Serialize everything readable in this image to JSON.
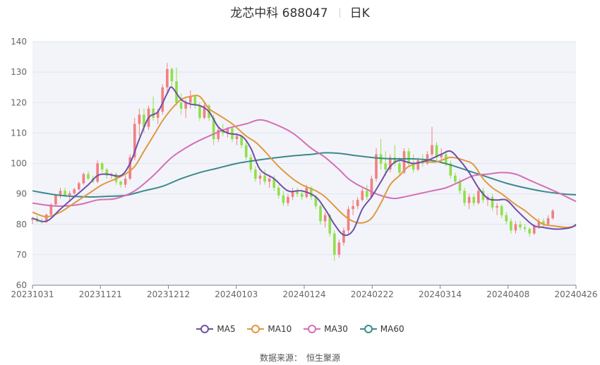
{
  "header": {
    "title": "龙芯中科 688047",
    "period": "日K"
  },
  "footer": {
    "source_label": "数据来源：",
    "source_name": "恒生聚源"
  },
  "colors": {
    "up": "#f08080",
    "down": "#8fe04a",
    "ma5": "#6f4fa6",
    "ma10": "#e0993f",
    "ma30": "#d46fb4",
    "ma60": "#3b8a8a",
    "plot_bg": "#f3f4fa",
    "grid": "#e0e4f0"
  },
  "chart_data": {
    "type": "candlestick",
    "x_ticks": [
      "20231031",
      "20231121",
      "20231212",
      "20240103",
      "20240124",
      "20240222",
      "20240314",
      "20240408",
      "20240426"
    ],
    "y_ticks": [
      60,
      70,
      80,
      90,
      100,
      110,
      120,
      130,
      140
    ],
    "ylim": [
      60,
      140
    ],
    "grid": true,
    "legend_position": "bottom",
    "legend": [
      "MA5",
      "MA10",
      "MA30",
      "MA60"
    ],
    "trading_days": 118,
    "ohlc": [
      [
        81.5,
        82.5,
        80.0,
        82.0
      ],
      [
        82.0,
        82.8,
        80.5,
        81.0
      ],
      [
        81.0,
        82.0,
        80.2,
        80.8
      ],
      [
        80.8,
        83.5,
        80.5,
        83.2
      ],
      [
        83.2,
        87.0,
        82.8,
        86.5
      ],
      [
        86.5,
        90.0,
        86.0,
        89.5
      ],
      [
        89.5,
        92.0,
        88.5,
        91.0
      ],
      [
        91.0,
        92.0,
        89.0,
        89.5
      ],
      [
        89.5,
        91.0,
        88.0,
        90.2
      ],
      [
        90.2,
        92.0,
        89.5,
        91.5
      ],
      [
        91.5,
        94.0,
        91.0,
        93.5
      ],
      [
        93.5,
        97.0,
        93.0,
        96.5
      ],
      [
        96.5,
        97.5,
        94.5,
        95.0
      ],
      [
        95.0,
        96.0,
        93.5,
        94.0
      ],
      [
        94.0,
        101.0,
        93.5,
        100.0
      ],
      [
        100.0,
        100.5,
        97.0,
        98.0
      ],
      [
        98.0,
        98.5,
        95.0,
        96.0
      ],
      [
        96.0,
        97.0,
        95.0,
        96.5
      ],
      [
        96.5,
        97.0,
        93.0,
        94.0
      ],
      [
        94.0,
        94.5,
        92.0,
        93.0
      ],
      [
        93.0,
        96.0,
        92.0,
        95.0
      ],
      [
        95.0,
        103.0,
        94.5,
        102.0
      ],
      [
        102.0,
        115.0,
        101.0,
        113.0
      ],
      [
        113.0,
        118.0,
        109.0,
        116.0
      ],
      [
        116.0,
        118.0,
        110.0,
        112.0
      ],
      [
        112.0,
        119.0,
        111.0,
        118.0
      ],
      [
        118.0,
        122.0,
        114.0,
        115.0
      ],
      [
        115.0,
        118.0,
        113.0,
        117.0
      ],
      [
        117.0,
        126.0,
        116.0,
        125.0
      ],
      [
        125.0,
        133.0,
        123.0,
        131.0
      ],
      [
        131.0,
        131.5,
        125.0,
        127.0
      ],
      [
        127.0,
        131.5,
        119.0,
        120.0
      ],
      [
        120.0,
        123.0,
        116.0,
        118.0
      ],
      [
        118.0,
        121.0,
        115.0,
        120.0
      ],
      [
        120.0,
        124.0,
        118.0,
        122.0
      ],
      [
        122.0,
        122.5,
        118.0,
        119.0
      ],
      [
        119.0,
        120.0,
        114.0,
        115.0
      ],
      [
        115.0,
        120.0,
        114.5,
        119.0
      ],
      [
        119.0,
        119.5,
        114.0,
        115.0
      ],
      [
        115.0,
        116.0,
        106.0,
        108.0
      ],
      [
        108.0,
        112.0,
        107.0,
        111.0
      ],
      [
        111.0,
        113.0,
        109.0,
        110.0
      ],
      [
        110.0,
        112.0,
        108.5,
        111.5
      ],
      [
        111.5,
        112.0,
        107.0,
        108.0
      ],
      [
        108.0,
        110.0,
        106.0,
        109.0
      ],
      [
        109.0,
        109.5,
        105.0,
        106.0
      ],
      [
        106.0,
        107.0,
        101.0,
        102.0
      ],
      [
        102.0,
        103.0,
        97.0,
        98.0
      ],
      [
        98.0,
        99.0,
        94.0,
        95.0
      ],
      [
        95.0,
        97.0,
        93.0,
        96.0
      ],
      [
        96.0,
        98.0,
        93.0,
        94.0
      ],
      [
        94.0,
        96.0,
        92.0,
        95.0
      ],
      [
        95.0,
        96.0,
        91.0,
        92.0
      ],
      [
        92.0,
        93.0,
        88.5,
        89.5
      ],
      [
        89.5,
        91.0,
        86.0,
        87.0
      ],
      [
        87.0,
        90.0,
        86.0,
        89.0
      ],
      [
        89.0,
        92.0,
        88.0,
        91.0
      ],
      [
        91.0,
        92.0,
        89.0,
        90.0
      ],
      [
        90.0,
        91.0,
        88.0,
        89.0
      ],
      [
        89.0,
        93.0,
        88.5,
        92.0
      ],
      [
        92.0,
        92.5,
        88.0,
        89.0
      ],
      [
        89.0,
        89.5,
        85.0,
        86.0
      ],
      [
        86.0,
        86.5,
        80.0,
        81.0
      ],
      [
        81.0,
        84.0,
        79.0,
        83.0
      ],
      [
        83.0,
        83.5,
        76.0,
        77.0
      ],
      [
        77.0,
        78.0,
        68.0,
        70.0
      ],
      [
        70.0,
        75.0,
        69.0,
        74.0
      ],
      [
        74.0,
        79.0,
        73.0,
        78.0
      ],
      [
        78.0,
        86.0,
        77.0,
        85.0
      ],
      [
        85.0,
        88.0,
        83.0,
        86.0
      ],
      [
        86.0,
        89.0,
        85.0,
        88.0
      ],
      [
        88.0,
        92.0,
        87.5,
        91.0
      ],
      [
        91.0,
        93.0,
        88.0,
        89.0
      ],
      [
        89.0,
        96.0,
        88.5,
        95.0
      ],
      [
        95.0,
        105.0,
        94.0,
        103.0
      ],
      [
        103.0,
        108.0,
        98.0,
        100.0
      ],
      [
        100.0,
        104.0,
        96.0,
        98.0
      ],
      [
        98.0,
        103.0,
        97.0,
        102.0
      ],
      [
        102.0,
        106.0,
        99.0,
        100.0
      ],
      [
        100.0,
        102.0,
        96.0,
        97.0
      ],
      [
        97.0,
        105.0,
        96.5,
        104.0
      ],
      [
        104.0,
        105.0,
        99.0,
        100.0
      ],
      [
        100.0,
        103.0,
        97.0,
        98.0
      ],
      [
        98.0,
        102.0,
        97.5,
        101.0
      ],
      [
        101.0,
        103.0,
        99.0,
        100.0
      ],
      [
        100.0,
        104.0,
        99.5,
        103.0
      ],
      [
        103.0,
        112.0,
        102.0,
        106.0
      ],
      [
        106.0,
        107.0,
        101.0,
        102.0
      ],
      [
        102.0,
        105.0,
        101.0,
        103.0
      ],
      [
        103.0,
        104.0,
        99.0,
        100.0
      ],
      [
        100.0,
        101.0,
        95.0,
        96.0
      ],
      [
        96.0,
        97.0,
        93.0,
        94.0
      ],
      [
        94.0,
        95.0,
        90.0,
        91.0
      ],
      [
        91.0,
        92.0,
        86.0,
        87.0
      ],
      [
        87.0,
        90.0,
        85.0,
        89.0
      ],
      [
        89.0,
        90.0,
        86.0,
        87.0
      ],
      [
        87.0,
        92.0,
        86.5,
        91.0
      ],
      [
        91.0,
        92.0,
        87.0,
        88.0
      ],
      [
        88.0,
        89.5,
        86.0,
        89.0
      ],
      [
        89.0,
        90.0,
        84.5,
        85.5
      ],
      [
        85.5,
        87.0,
        83.0,
        86.0
      ],
      [
        86.0,
        86.5,
        82.0,
        83.0
      ],
      [
        83.0,
        84.0,
        80.0,
        81.0
      ],
      [
        81.0,
        82.0,
        77.0,
        78.0
      ],
      [
        78.0,
        81.0,
        77.0,
        80.0
      ],
      [
        80.0,
        81.0,
        78.0,
        79.0
      ],
      [
        79.0,
        80.0,
        77.5,
        78.5
      ],
      [
        78.5,
        79.0,
        76.0,
        77.0
      ],
      [
        77.0,
        80.0,
        76.5,
        79.5
      ],
      [
        79.5,
        82.0,
        78.5,
        81.0
      ],
      [
        81.0,
        82.0,
        79.0,
        80.0
      ],
      [
        80.0,
        83.0,
        79.5,
        82.0
      ],
      [
        82.0,
        85.0,
        81.5,
        84.5
      ]
    ],
    "ma_anchors": {
      "MA5": [
        [
          0,
          82
        ],
        [
          3,
          81
        ],
        [
          6,
          85
        ],
        [
          9,
          89
        ],
        [
          12,
          93
        ],
        [
          14,
          96
        ],
        [
          16,
          96.5
        ],
        [
          19,
          96
        ],
        [
          21,
          100
        ],
        [
          23,
          108
        ],
        [
          25,
          115
        ],
        [
          27,
          117
        ],
        [
          29,
          123
        ],
        [
          30,
          125
        ],
        [
          32,
          121
        ],
        [
          34,
          119.5
        ],
        [
          36,
          119
        ],
        [
          38,
          117
        ],
        [
          40,
          112
        ],
        [
          42,
          110
        ],
        [
          45,
          109
        ],
        [
          47,
          105
        ],
        [
          49,
          98
        ],
        [
          52,
          95
        ],
        [
          55,
          91
        ],
        [
          58,
          91
        ],
        [
          61,
          89
        ],
        [
          63,
          85
        ],
        [
          65,
          80
        ],
        [
          67,
          76.5
        ],
        [
          69,
          78
        ],
        [
          71,
          85
        ],
        [
          73,
          89
        ],
        [
          75,
          94
        ],
        [
          77,
          99
        ],
        [
          79,
          101
        ],
        [
          82,
          100
        ],
        [
          85,
          101
        ],
        [
          88,
          103
        ],
        [
          90,
          104
        ],
        [
          92,
          101
        ],
        [
          94,
          97
        ],
        [
          96,
          92
        ],
        [
          98,
          88.5
        ],
        [
          100,
          88
        ],
        [
          102,
          88
        ],
        [
          104,
          85
        ],
        [
          106,
          82
        ],
        [
          108,
          79.5
        ],
        [
          110,
          79
        ],
        [
          112,
          78.5
        ],
        [
          114,
          78.5
        ],
        [
          116,
          79
        ],
        [
          117,
          80
        ]
      ],
      "MA10": [
        [
          0,
          84
        ],
        [
          3,
          82.5
        ],
        [
          6,
          84
        ],
        [
          9,
          87
        ],
        [
          12,
          90
        ],
        [
          15,
          93
        ],
        [
          18,
          95
        ],
        [
          20,
          96.5
        ],
        [
          22,
          99
        ],
        [
          24,
          104
        ],
        [
          26,
          109
        ],
        [
          28,
          114
        ],
        [
          30,
          118
        ],
        [
          32,
          121
        ],
        [
          34,
          122
        ],
        [
          36,
          122
        ],
        [
          38,
          118
        ],
        [
          40,
          116
        ],
        [
          43,
          113
        ],
        [
          46,
          109
        ],
        [
          48,
          107
        ],
        [
          50,
          104
        ],
        [
          53,
          99
        ],
        [
          56,
          95
        ],
        [
          58,
          93
        ],
        [
          61,
          91
        ],
        [
          63,
          89
        ],
        [
          65,
          86
        ],
        [
          67,
          83
        ],
        [
          69,
          81
        ],
        [
          71,
          80.5
        ],
        [
          73,
          82
        ],
        [
          75,
          87
        ],
        [
          77,
          93
        ],
        [
          79,
          96
        ],
        [
          81,
          99
        ],
        [
          84,
          100.5
        ],
        [
          87,
          100.5
        ],
        [
          90,
          102
        ],
        [
          93,
          101
        ],
        [
          95,
          99.5
        ],
        [
          97,
          95
        ],
        [
          99,
          92
        ],
        [
          101,
          90
        ],
        [
          104,
          86.5
        ],
        [
          106,
          84.5
        ],
        [
          108,
          82
        ],
        [
          110,
          80
        ],
        [
          112,
          79.5
        ],
        [
          115,
          79
        ],
        [
          117,
          79.5
        ]
      ],
      "MA30": [
        [
          0,
          87
        ],
        [
          5,
          86
        ],
        [
          10,
          86.5
        ],
        [
          14,
          88
        ],
        [
          18,
          88.5
        ],
        [
          22,
          91
        ],
        [
          26,
          96
        ],
        [
          30,
          102
        ],
        [
          34,
          106
        ],
        [
          38,
          109
        ],
        [
          42,
          111.5
        ],
        [
          46,
          113
        ],
        [
          49,
          114.3
        ],
        [
          52,
          113
        ],
        [
          56,
          110
        ],
        [
          60,
          105
        ],
        [
          63,
          102
        ],
        [
          66,
          98
        ],
        [
          68,
          95
        ],
        [
          70,
          93
        ],
        [
          72,
          91.5
        ],
        [
          74,
          90
        ],
        [
          76,
          89
        ],
        [
          78,
          88.5
        ],
        [
          80,
          89
        ],
        [
          83,
          90
        ],
        [
          86,
          91
        ],
        [
          89,
          92
        ],
        [
          92,
          94
        ],
        [
          95,
          96
        ],
        [
          98,
          96.5
        ],
        [
          101,
          97
        ],
        [
          104,
          96.5
        ],
        [
          107,
          94.5
        ],
        [
          110,
          92.5
        ],
        [
          113,
          90.5
        ],
        [
          115,
          89
        ],
        [
          117,
          87.5
        ]
      ],
      "MA60": [
        [
          0,
          91
        ],
        [
          6,
          89.5
        ],
        [
          12,
          89
        ],
        [
          16,
          89.2
        ],
        [
          20,
          89.5
        ],
        [
          24,
          91
        ],
        [
          28,
          92.5
        ],
        [
          32,
          95
        ],
        [
          36,
          97
        ],
        [
          40,
          98.5
        ],
        [
          44,
          100
        ],
        [
          48,
          101
        ],
        [
          52,
          101.8
        ],
        [
          56,
          102.5
        ],
        [
          60,
          103
        ],
        [
          63,
          103.5
        ],
        [
          66,
          103.3
        ],
        [
          70,
          102.5
        ],
        [
          74,
          101.8
        ],
        [
          78,
          101.5
        ],
        [
          82,
          101.5
        ],
        [
          86,
          101
        ],
        [
          90,
          99.5
        ],
        [
          94,
          97.5
        ],
        [
          98,
          95.5
        ],
        [
          102,
          93.5
        ],
        [
          106,
          92
        ],
        [
          110,
          90.8
        ],
        [
          114,
          90
        ],
        [
          117,
          89.7
        ]
      ]
    }
  }
}
